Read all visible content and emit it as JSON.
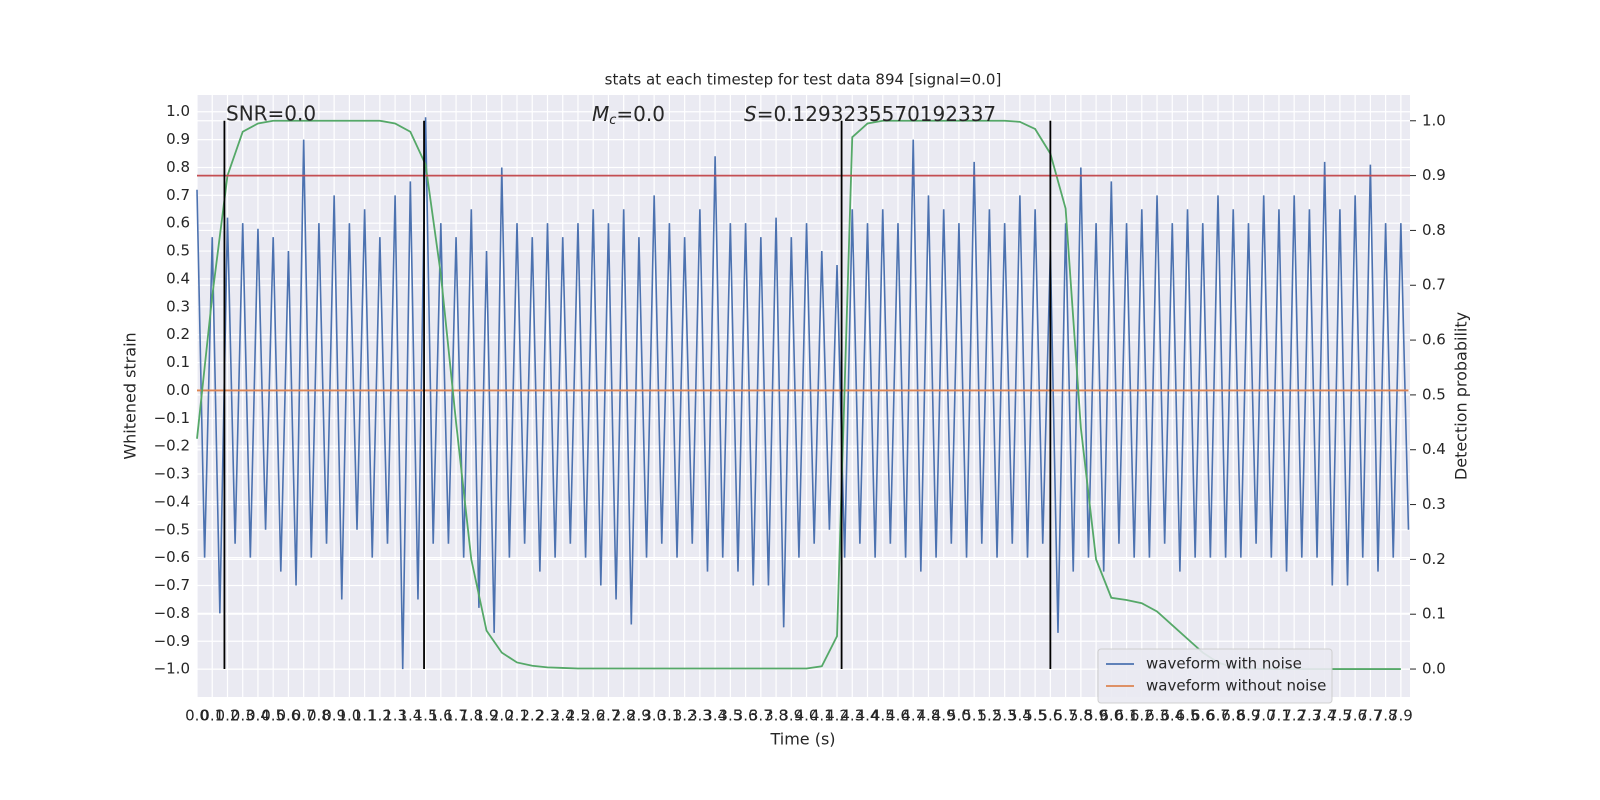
{
  "chart_data": {
    "type": "line",
    "title": "stats at each timestep for test data 894 [signal=0.0]",
    "xlabel": "Time (s)",
    "ylabel": "Whitened strain",
    "y2label": "Detection probability",
    "annotations": [
      {
        "text": "SNR=0.0"
      },
      {
        "symbol": "M",
        "subscript": "c",
        "text": "=0.0"
      },
      {
        "symbol": "S",
        "text": "=0.1293235570192337"
      }
    ],
    "xlim": [
      0,
      7.96
    ],
    "ylim": [
      -1.1,
      1.06
    ],
    "y2lim": [
      -0.051,
      1.047
    ],
    "xticks": [
      {
        "value": 0,
        "label": "0.0"
      },
      0.1,
      0.2,
      0.3,
      0.4,
      0.5,
      0.6,
      0.7,
      0.8,
      0.9,
      {
        "value": 1,
        "label": "1.0"
      },
      1.1,
      1.2,
      1.3,
      1.4,
      1.5,
      1.6,
      1.7,
      1.8,
      1.9,
      {
        "value": 2,
        "label": "2.0"
      },
      2.1,
      2.2,
      2.3,
      2.4,
      2.5,
      2.6,
      2.7,
      2.8,
      2.9,
      {
        "value": 3,
        "label": "3.0"
      },
      3.1,
      3.2,
      3.3,
      3.4,
      3.5,
      3.6,
      3.7,
      3.8,
      3.9,
      {
        "value": 4,
        "label": "4.0"
      },
      4.1,
      4.2,
      4.3,
      4.4,
      4.5,
      4.6,
      4.7,
      4.8,
      4.9,
      {
        "value": 5,
        "label": "5.0"
      },
      5.1,
      5.2,
      5.3,
      5.4,
      5.5,
      5.6,
      5.7,
      5.8,
      5.9,
      {
        "value": 6,
        "label": "6.0"
      },
      6.1,
      6.2,
      6.3,
      6.4,
      6.5,
      6.6,
      6.7,
      6.8,
      6.9,
      {
        "value": 7,
        "label": "7.0"
      },
      7.1,
      7.2,
      7.3,
      7.4,
      7.5,
      7.6,
      7.7,
      7.8,
      7.9
    ],
    "yticks": [
      {
        "value": 1,
        "label": "1.0"
      },
      0.9,
      0.8,
      0.7,
      0.6,
      0.5,
      0.4,
      0.3,
      0.2,
      0.1,
      {
        "value": 0,
        "label": "0.0"
      },
      {
        "value": -0.1,
        "label": "−0.1"
      },
      {
        "value": -0.2,
        "label": "−0.2"
      },
      {
        "value": -0.3,
        "label": "−0.3"
      },
      {
        "value": -0.4,
        "label": "−0.4"
      },
      {
        "value": -0.5,
        "label": "−0.5"
      },
      {
        "value": -0.6,
        "label": "−0.6"
      },
      {
        "value": -0.7,
        "label": "−0.7"
      },
      {
        "value": -0.8,
        "label": "−0.8"
      },
      {
        "value": -0.9,
        "label": "−0.9"
      },
      {
        "value": -1,
        "label": "−1.0"
      }
    ],
    "y2ticks": [
      {
        "value": 0,
        "label": "0.0"
      },
      0.1,
      0.2,
      0.3,
      0.4,
      0.5,
      0.6,
      0.7,
      0.8,
      0.9,
      {
        "value": 1,
        "label": "1.0"
      }
    ],
    "grid": true,
    "legend": "lower right",
    "series": [
      {
        "name": "waveform with noise",
        "color": "#4c72b0",
        "x": [
          0,
          0.05,
          0.1,
          0.15,
          0.2,
          0.25,
          0.3,
          0.35,
          0.4,
          0.45,
          0.5,
          0.55,
          0.6,
          0.65,
          0.7,
          0.75,
          0.8,
          0.85,
          0.9,
          0.95,
          1,
          1.05,
          1.1,
          1.15,
          1.2,
          1.25,
          1.3,
          1.35,
          1.4,
          1.45,
          1.5,
          1.55,
          1.6,
          1.65,
          1.7,
          1.75,
          1.8,
          1.85,
          1.9,
          1.95,
          2,
          2.05,
          2.1,
          2.15,
          2.2,
          2.25,
          2.3,
          2.35,
          2.4,
          2.45,
          2.5,
          2.55,
          2.6,
          2.65,
          2.7,
          2.75,
          2.8,
          2.85,
          2.9,
          2.95,
          3,
          3.05,
          3.1,
          3.15,
          3.2,
          3.25,
          3.3,
          3.35,
          3.4,
          3.45,
          3.5,
          3.55,
          3.6,
          3.65,
          3.7,
          3.75,
          3.8,
          3.85,
          3.9,
          3.95,
          4,
          4.05,
          4.1,
          4.15,
          4.2,
          4.25,
          4.3,
          4.35,
          4.4,
          4.45,
          4.5,
          4.55,
          4.6,
          4.65,
          4.7,
          4.75,
          4.8,
          4.85,
          4.9,
          4.95,
          5,
          5.05,
          5.1,
          5.15,
          5.2,
          5.25,
          5.3,
          5.35,
          5.4,
          5.45,
          5.5,
          5.55,
          5.6,
          5.65,
          5.7,
          5.75,
          5.8,
          5.85,
          5.9,
          5.95,
          6,
          6.05,
          6.1,
          6.15,
          6.2,
          6.25,
          6.3,
          6.35,
          6.4,
          6.45,
          6.5,
          6.55,
          6.6,
          6.65,
          6.7,
          6.75,
          6.8,
          6.85,
          6.9,
          6.95,
          7,
          7.05,
          7.1,
          7.15,
          7.2,
          7.25,
          7.3,
          7.35,
          7.4,
          7.45,
          7.5,
          7.55,
          7.6,
          7.65,
          7.7,
          7.75,
          7.8,
          7.85,
          7.9,
          7.95
        ],
        "values": [
          0.72,
          -0.6,
          0.55,
          -0.8,
          0.62,
          -0.55,
          0.6,
          -0.6,
          0.58,
          -0.5,
          0.55,
          -0.65,
          0.5,
          -0.7,
          0.9,
          -0.6,
          0.6,
          -0.55,
          0.7,
          -0.75,
          0.6,
          -0.5,
          0.65,
          -0.6,
          0.55,
          -0.55,
          0.7,
          -1.0,
          0.75,
          -0.75,
          0.98,
          -0.55,
          0.6,
          -0.55,
          0.55,
          -0.6,
          0.65,
          -0.78,
          0.5,
          -0.87,
          0.8,
          -0.6,
          0.6,
          -0.55,
          0.55,
          -0.65,
          0.6,
          -0.6,
          0.55,
          -0.55,
          0.6,
          -0.6,
          0.65,
          -0.7,
          0.6,
          -0.75,
          0.65,
          -0.84,
          0.55,
          -0.6,
          0.7,
          -0.55,
          0.6,
          -0.6,
          0.55,
          -0.55,
          0.65,
          -0.65,
          0.84,
          -0.6,
          0.6,
          -0.65,
          0.6,
          -0.7,
          0.55,
          -0.7,
          0.62,
          -0.85,
          0.55,
          -0.6,
          0.6,
          -0.55,
          0.5,
          -0.5,
          0.45,
          -0.6,
          0.65,
          -0.55,
          0.6,
          -0.6,
          0.65,
          -0.55,
          0.6,
          -0.6,
          0.9,
          -0.65,
          0.7,
          -0.6,
          0.65,
          -0.55,
          0.6,
          -0.6,
          0.82,
          -0.55,
          0.65,
          -0.6,
          0.6,
          -0.55,
          0.7,
          -0.6,
          0.65,
          -0.55,
          0.5,
          -0.87,
          0.6,
          -0.65,
          0.8,
          -0.6,
          0.6,
          -0.65,
          0.75,
          -0.55,
          0.6,
          -0.6,
          0.65,
          -0.6,
          0.7,
          -0.55,
          0.6,
          -0.65,
          0.65,
          -0.6,
          0.6,
          -0.6,
          0.7,
          -0.6,
          0.65,
          -0.6,
          0.6,
          -0.55,
          0.7,
          -0.6,
          0.65,
          -0.65,
          0.7,
          -0.6,
          0.65,
          -0.6,
          0.82,
          -0.7,
          0.65,
          -0.7,
          0.7,
          -0.6,
          0.81,
          -0.65,
          0.6,
          -0.6,
          0.6,
          -0.5
        ]
      },
      {
        "name": "waveform without noise",
        "color": "#dd8452",
        "x": [
          0,
          7.95
        ],
        "values": [
          0,
          0
        ]
      },
      {
        "color": "#55a868",
        "axis": "y2",
        "x": [
          0,
          0.1,
          0.2,
          0.3,
          0.4,
          0.5,
          0.6,
          0.7,
          0.8,
          0.9,
          1,
          1.1,
          1.2,
          1.3,
          1.4,
          1.5,
          1.6,
          1.7,
          1.8,
          1.9,
          2,
          2.1,
          2.2,
          2.3,
          2.4,
          2.5,
          2.6,
          2.7,
          2.8,
          2.9,
          3,
          3.1,
          3.2,
          3.3,
          3.4,
          3.5,
          3.6,
          3.7,
          3.8,
          3.9,
          4,
          4.1,
          4.2,
          4.3,
          4.4,
          4.5,
          4.6,
          4.7,
          4.8,
          4.9,
          5,
          5.1,
          5.2,
          5.3,
          5.4,
          5.5,
          5.6,
          5.7,
          5.8,
          5.9,
          6,
          6.1,
          6.2,
          6.3,
          6.4,
          6.5,
          6.6,
          6.7,
          6.8,
          6.9,
          7,
          7.1,
          7.2,
          7.3,
          7.4,
          7.5,
          7.6,
          7.7,
          7.8,
          7.9
        ],
        "values": [
          0.42,
          0.68,
          0.9,
          0.98,
          0.995,
          1,
          1,
          1,
          1,
          1,
          1,
          1,
          1,
          0.995,
          0.98,
          0.92,
          0.72,
          0.45,
          0.2,
          0.07,
          0.03,
          0.012,
          0.006,
          0.003,
          0.002,
          0.001,
          0.001,
          0.001,
          0.001,
          0.001,
          0.001,
          0.001,
          0.001,
          0.001,
          0.001,
          0.001,
          0.001,
          0.001,
          0.001,
          0.001,
          0.001,
          0.005,
          0.06,
          0.97,
          0.995,
          1,
          1,
          1,
          1,
          1,
          1,
          1,
          1,
          1,
          0.998,
          0.985,
          0.94,
          0.84,
          0.44,
          0.2,
          0.13,
          0.126,
          0.12,
          0.105,
          0.08,
          0.055,
          0.03,
          0.012,
          0.003,
          0.001,
          0,
          0,
          0,
          0,
          0,
          0,
          0,
          0,
          0,
          0
        ]
      }
    ],
    "hlines": [
      {
        "value": 0.9,
        "axis": "y2",
        "color": "#c44e52"
      }
    ],
    "vlines": [
      0.18,
      1.49,
      4.23,
      5.6
    ],
    "vline_span": [
      0,
      1
    ],
    "vline_color": "#000000"
  }
}
